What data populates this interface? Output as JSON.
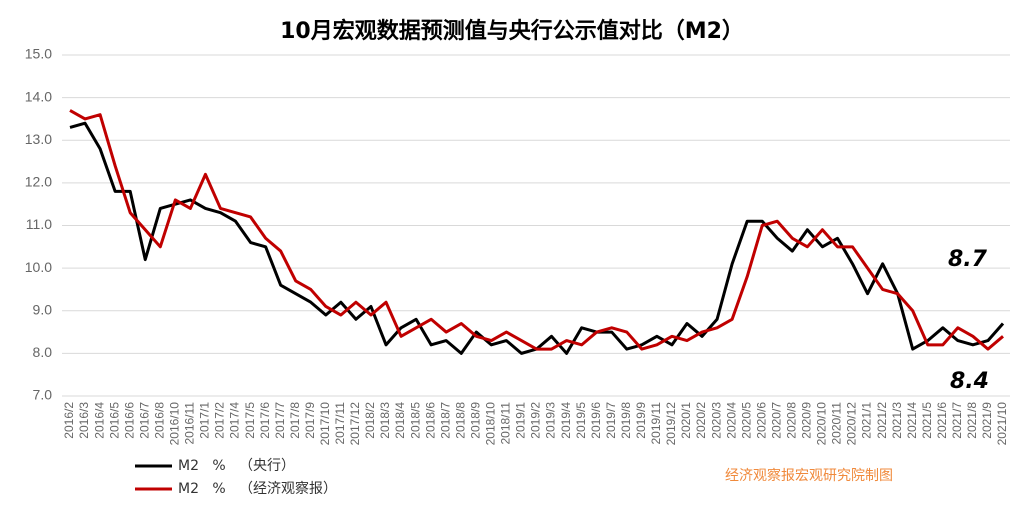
{
  "chart_data": {
    "type": "line",
    "title": "10月宏观数据预测值与央行公示值对比（M2）",
    "categories": [
      "2016/2",
      "2016/3",
      "2016/4",
      "2016/5",
      "2016/6",
      "2016/7",
      "2016/8",
      "2016/10",
      "2016/11",
      "2017/1",
      "2017/2",
      "2017/4",
      "2017/5",
      "2017/6",
      "2017/7",
      "2017/8",
      "2017/9",
      "2017/10",
      "2017/11",
      "2017/12",
      "2018/2",
      "2018/3",
      "2018/4",
      "2018/5",
      "2018/6",
      "2018/7",
      "2018/8",
      "2018/9",
      "2018/10",
      "2018/11",
      "2019/1",
      "2019/2",
      "2019/3",
      "2019/4",
      "2019/5",
      "2019/6",
      "2019/7",
      "2019/8",
      "2019/9",
      "2019/11",
      "2019/12",
      "2020/1",
      "2020/2",
      "2020/3",
      "2020/4",
      "2020/5",
      "2020/6",
      "2020/7",
      "2020/8",
      "2020/9",
      "2020/10",
      "2020/11",
      "2020/12",
      "2021/1",
      "2021/2",
      "2021/3",
      "2021/4",
      "2021/5",
      "2021/6",
      "2021/7",
      "2021/8",
      "2021/9",
      "2021/10"
    ],
    "series": [
      {
        "name": "M2   %   （央行）",
        "color": "#000000",
        "values": [
          13.3,
          13.4,
          12.8,
          11.8,
          11.8,
          10.2,
          11.4,
          11.5,
          11.6,
          11.4,
          11.3,
          11.1,
          10.6,
          10.5,
          9.6,
          9.4,
          9.2,
          8.9,
          9.2,
          8.8,
          9.1,
          8.2,
          8.6,
          8.8,
          8.2,
          8.3,
          8.0,
          8.5,
          8.2,
          8.3,
          8.0,
          8.1,
          8.4,
          8.0,
          8.6,
          8.5,
          8.5,
          8.1,
          8.2,
          8.4,
          8.2,
          8.7,
          8.4,
          8.8,
          10.1,
          11.1,
          11.1,
          10.7,
          10.4,
          10.9,
          10.5,
          10.7,
          10.1,
          9.4,
          10.1,
          9.4,
          8.1,
          8.3,
          8.6,
          8.3,
          8.2,
          8.3,
          8.7
        ]
      },
      {
        "name": "M2   %   （经济观察报）",
        "color": "#c00000",
        "values": [
          13.7,
          13.5,
          13.6,
          12.4,
          11.3,
          10.9,
          10.5,
          11.6,
          11.4,
          12.2,
          11.4,
          11.3,
          11.2,
          10.7,
          10.4,
          9.7,
          9.5,
          9.1,
          8.9,
          9.2,
          8.9,
          9.2,
          8.4,
          8.6,
          8.8,
          8.5,
          8.7,
          8.4,
          8.3,
          8.5,
          8.3,
          8.1,
          8.1,
          8.3,
          8.2,
          8.5,
          8.6,
          8.5,
          8.1,
          8.2,
          8.4,
          8.3,
          8.5,
          8.6,
          8.8,
          9.8,
          11.0,
          11.1,
          10.7,
          10.5,
          10.9,
          10.5,
          10.5,
          10.0,
          9.5,
          9.4,
          9.0,
          8.2,
          8.2,
          8.6,
          8.4,
          8.1,
          8.4
        ]
      }
    ],
    "annotations": [
      "8.7",
      "8.4"
    ],
    "source": "经济观察报宏观研究院制图",
    "ylim": [
      7,
      15
    ],
    "yticks": [
      {
        "value": 7,
        "label": "7.0"
      },
      {
        "value": 8,
        "label": "8.0"
      },
      {
        "value": 9,
        "label": "9.0"
      },
      {
        "value": 10,
        "label": "10.0"
      },
      {
        "value": 11,
        "label": "11.0"
      },
      {
        "value": 12,
        "label": "12.0"
      },
      {
        "value": 13,
        "label": "13.0"
      },
      {
        "value": 14,
        "label": "14.0"
      },
      {
        "value": 15,
        "label": "15.0"
      }
    ],
    "grid": true
  }
}
